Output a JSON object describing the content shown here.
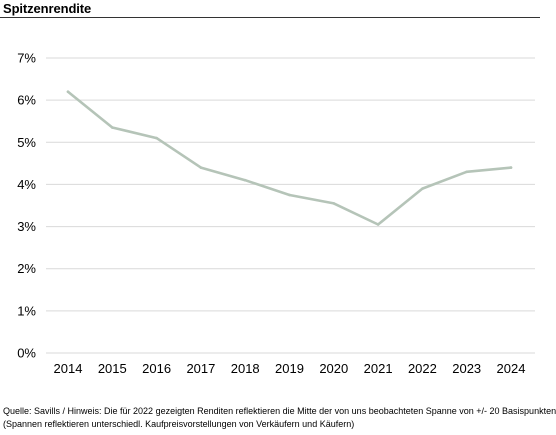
{
  "header": {
    "title": "Spitzenrendite"
  },
  "footer": {
    "source_line1": "Quelle: Savills / Hinweis: Die für 2022 gezeigten Renditen reflektieren die Mitte der von uns beobachteten Spanne von +/- 20 Basispunkten",
    "source_line2": "(Spannen reflektieren unterschiedl. Kaufpreisvorstellungen von Verkäufern und Käufern)"
  },
  "chart_data": {
    "type": "line",
    "title": "Spitzenrendite",
    "xlabel": "",
    "ylabel": "",
    "categories": [
      "2014",
      "2015",
      "2016",
      "2017",
      "2018",
      "2019",
      "2020",
      "2021",
      "2022",
      "2023",
      "2024"
    ],
    "series": [
      {
        "values": [
          6.2,
          5.35,
          5.1,
          4.4,
          4.1,
          3.75,
          3.55,
          3.05,
          3.9,
          4.3,
          4.4
        ]
      }
    ],
    "ylim": [
      0,
      7
    ],
    "yticks": [
      0,
      1,
      2,
      3,
      4,
      5,
      6,
      7
    ],
    "ytick_labels": [
      "0%",
      "1%",
      "2%",
      "3%",
      "4%",
      "5%",
      "6%",
      "7%"
    ],
    "grid": true,
    "legend": "none",
    "colors": {
      "line": "#b5c4b8",
      "grid": "#d9d9d9",
      "axis": "#d9d9d9"
    }
  }
}
